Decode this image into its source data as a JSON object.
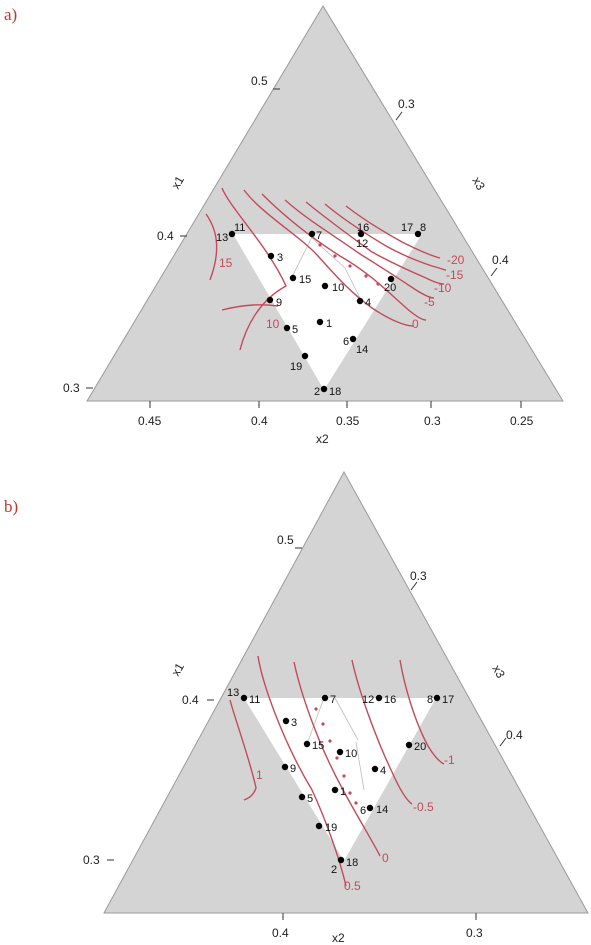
{
  "chart_data": [
    {
      "panel": "a)",
      "type": "ternary-contour",
      "colors": {
        "excluded_region": "#d4d4d4",
        "feasible_region": "#ffffff",
        "contour": "#c24b5a",
        "outline": "#555555",
        "point": "#000000"
      },
      "axes": {
        "x1": {
          "label": "x1",
          "ticks": [
            "0.5",
            "0.4",
            "0.3"
          ]
        },
        "x2": {
          "label": "x2",
          "ticks": [
            "0.45",
            "0.4",
            "0.35",
            "0.3",
            "0.25"
          ]
        },
        "x3": {
          "label": "x3",
          "ticks": [
            "0.3",
            "0.4"
          ]
        }
      },
      "points": [
        {
          "id": "1",
          "label_side": "r"
        },
        {
          "id": "2",
          "label_side": "l"
        },
        {
          "id": "18",
          "label_side": "r"
        },
        {
          "id": "3",
          "label_side": "r"
        },
        {
          "id": "4",
          "label_side": "r"
        },
        {
          "id": "5",
          "label_side": "r"
        },
        {
          "id": "6",
          "label_side": "l"
        },
        {
          "id": "14",
          "label_side": "r"
        },
        {
          "id": "7",
          "label_side": "r"
        },
        {
          "id": "8",
          "label_side": "r"
        },
        {
          "id": "17",
          "label_side": "l"
        },
        {
          "id": "9",
          "label_side": "r"
        },
        {
          "id": "10",
          "label_side": "r"
        },
        {
          "id": "11",
          "label_side": "r"
        },
        {
          "id": "13",
          "label_side": "l"
        },
        {
          "id": "12",
          "label_side": "r"
        },
        {
          "id": "16",
          "label_side": "r"
        },
        {
          "id": "15",
          "label_side": "r"
        },
        {
          "id": "19",
          "label_side": "l"
        },
        {
          "id": "20",
          "label_side": "r"
        }
      ],
      "contours": [
        "15",
        "10",
        "0",
        "-5",
        "-10",
        "-15",
        "-20"
      ]
    },
    {
      "panel": "b)",
      "type": "ternary-contour",
      "colors": {
        "excluded_region": "#d4d4d4",
        "feasible_region": "#ffffff",
        "contour": "#c24b5a",
        "outline": "#555555",
        "point": "#000000"
      },
      "axes": {
        "x1": {
          "label": "x1",
          "ticks": [
            "0.5",
            "0.4",
            "0.3"
          ]
        },
        "x2": {
          "label": "x2",
          "ticks": [
            "0.4",
            "0.3"
          ]
        },
        "x3": {
          "label": "x3",
          "ticks": [
            "0.3",
            "0.4"
          ]
        }
      },
      "points": [
        {
          "id": "1",
          "label_side": "r"
        },
        {
          "id": "2",
          "label_side": "l"
        },
        {
          "id": "18",
          "label_side": "r"
        },
        {
          "id": "3",
          "label_side": "r"
        },
        {
          "id": "4",
          "label_side": "r"
        },
        {
          "id": "5",
          "label_side": "r"
        },
        {
          "id": "6",
          "label_side": "l"
        },
        {
          "id": "14",
          "label_side": "r"
        },
        {
          "id": "7",
          "label_side": "r"
        },
        {
          "id": "8",
          "label_side": "l"
        },
        {
          "id": "17",
          "label_side": "r"
        },
        {
          "id": "9",
          "label_side": "r"
        },
        {
          "id": "10",
          "label_side": "r"
        },
        {
          "id": "11",
          "label_side": "r"
        },
        {
          "id": "13",
          "label_side": "l"
        },
        {
          "id": "12",
          "label_side": "l"
        },
        {
          "id": "16",
          "label_side": "r"
        },
        {
          "id": "15",
          "label_side": "r"
        },
        {
          "id": "19",
          "label_side": "r"
        },
        {
          "id": "20",
          "label_side": "r"
        }
      ],
      "contours": [
        "1",
        "0.5",
        "0",
        "-0.5",
        "-1"
      ]
    }
  ]
}
